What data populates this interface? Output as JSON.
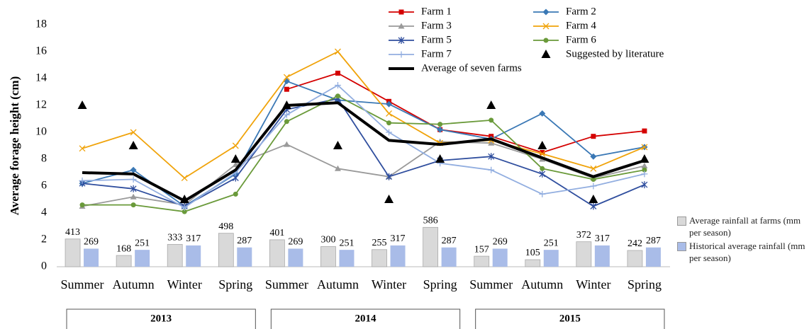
{
  "chart_data": {
    "type": "line",
    "y_label": "Average forage height (cm)",
    "categories": [
      "Summer",
      "Autumn",
      "Winter",
      "Spring",
      "Summer",
      "Autumn",
      "Winter",
      "Spring",
      "Summer",
      "Autumn",
      "Winter",
      "Spring"
    ],
    "year_groups": [
      "2013",
      "2014",
      "2015"
    ],
    "ylim": [
      0,
      18
    ],
    "yticks": [
      0,
      2,
      4,
      6,
      8,
      10,
      12,
      14,
      16,
      18
    ],
    "y2lim": [
      0,
      3600
    ],
    "grid": false,
    "series": [
      {
        "name": "Farm 1",
        "color": "#d40000",
        "marker": "square",
        "values": [
          null,
          null,
          null,
          null,
          13.2,
          14.4,
          12.3,
          10.2,
          9.7,
          8.5,
          9.7,
          10.1
        ]
      },
      {
        "name": "Farm 2",
        "color": "#3a78b5",
        "marker": "diamond",
        "values": [
          6.2,
          7.2,
          4.5,
          6.9,
          13.8,
          12.4,
          12.1,
          10.2,
          9.5,
          11.4,
          8.2,
          8.9
        ]
      },
      {
        "name": "Farm 3",
        "color": "#9a9a9a",
        "marker": "triangle",
        "values": [
          4.5,
          5.2,
          4.6,
          7.6,
          9.1,
          7.3,
          6.7,
          9.3,
          9.2,
          8.0,
          6.6,
          7.5
        ]
      },
      {
        "name": "Farm 4",
        "color": "#f0a30a",
        "marker": "x",
        "values": [
          8.8,
          10.0,
          6.6,
          9.0,
          14.1,
          16.0,
          11.4,
          9.2,
          9.4,
          8.4,
          7.3,
          8.9
        ]
      },
      {
        "name": "Farm 5",
        "color": "#2f4e9e",
        "marker": "star",
        "values": [
          6.2,
          5.8,
          4.5,
          6.6,
          11.7,
          12.5,
          6.7,
          7.9,
          8.2,
          6.9,
          4.5,
          6.1
        ]
      },
      {
        "name": "Farm 6",
        "color": "#6a9a3a",
        "marker": "circle",
        "values": [
          4.6,
          4.6,
          4.1,
          5.4,
          10.8,
          12.7,
          10.7,
          10.6,
          10.9,
          7.3,
          6.5,
          7.2
        ]
      },
      {
        "name": "Farm 7",
        "color": "#92aee0",
        "marker": "plus",
        "values": [
          6.4,
          6.5,
          4.4,
          7.0,
          11.3,
          13.5,
          10.0,
          7.7,
          7.2,
          5.4,
          6.0,
          6.9
        ]
      },
      {
        "name": "Suggested by literature",
        "color": "#000000",
        "marker": "bigtriangle",
        "style": "markers",
        "values": [
          12,
          9,
          5,
          8,
          12,
          9,
          5,
          8,
          12,
          9,
          5,
          8
        ]
      },
      {
        "name": "Average of seven farms",
        "color": "#000000",
        "marker": "none",
        "width": 4,
        "values": [
          7.0,
          6.9,
          4.9,
          7.2,
          12.0,
          12.2,
          9.4,
          9.1,
          9.5,
          8.1,
          6.7,
          7.9
        ]
      }
    ],
    "bar_series": [
      {
        "name": "Average rainfall at farms (mm per season)",
        "color": "#d9d9d9",
        "axis": "y2",
        "values": [
          413,
          168,
          333,
          498,
          401,
          300,
          255,
          586,
          157,
          105,
          372,
          242
        ]
      },
      {
        "name": "Historical average rainfall (mm per season)",
        "color": "#a9bce8",
        "axis": "y2",
        "values": [
          269,
          251,
          317,
          287,
          269,
          251,
          317,
          287,
          269,
          251,
          317,
          287
        ]
      }
    ]
  }
}
